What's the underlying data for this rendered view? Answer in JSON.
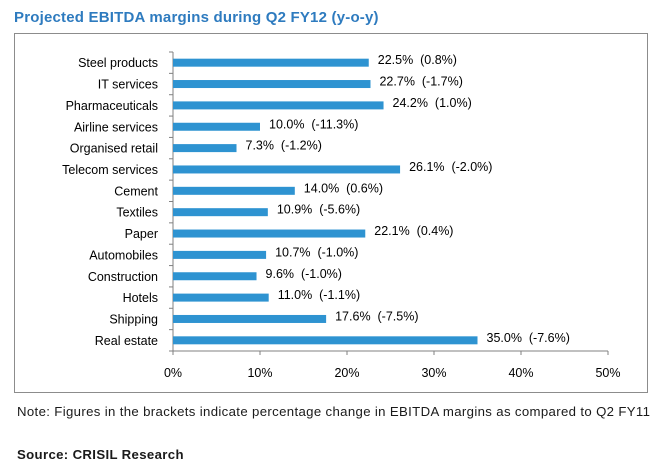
{
  "title": "Projected EBITDA margins during Q2 FY12 (y-o-y)",
  "note": "Note: Figures in the brackets indicate percentage change in EBITDA margins as compared to Q2 FY11",
  "source": "Source: CRISIL Research",
  "colors": {
    "bar": "#2e93d1",
    "title": "#2e7bbf",
    "axis": "#808080"
  },
  "chart_data": {
    "type": "bar",
    "orientation": "horizontal",
    "title": "Projected EBITDA margins during Q2 FY12 (y-o-y)",
    "categories": [
      "Steel products",
      "IT services",
      "Pharmaceuticals",
      "Airline services",
      "Organised retail",
      "Telecom services",
      "Cement",
      "Textiles",
      "Paper",
      "Automobiles",
      "Construction",
      "Hotels",
      "Shipping",
      "Real estate"
    ],
    "values": [
      22.5,
      22.7,
      24.2,
      10.0,
      7.3,
      26.1,
      14.0,
      10.9,
      22.1,
      10.7,
      9.6,
      11.0,
      17.6,
      35.0
    ],
    "labels": [
      "22.5%  (0.8%)",
      "22.7%  (-1.7%)",
      "24.2%  (1.0%)",
      "10.0%  (-11.3%)",
      "7.3%  (-1.2%)",
      "26.1%  (-2.0%)",
      "14.0%  (0.6%)",
      "10.9%  (-5.6%)",
      "22.1%  (0.4%)",
      "10.7%  (-1.0%)",
      "9.6%  (-1.0%)",
      "11.0%  (-1.1%)",
      "17.6%  (-7.5%)",
      "35.0%  (-7.6%)"
    ],
    "xlim": [
      0,
      50
    ],
    "xticks": [
      0,
      10,
      20,
      30,
      40,
      50
    ],
    "xtick_labels": [
      "0%",
      "10%",
      "20%",
      "30%",
      "40%",
      "50%"
    ],
    "xlabel": "",
    "ylabel": "",
    "grid": false,
    "legend": "none"
  }
}
